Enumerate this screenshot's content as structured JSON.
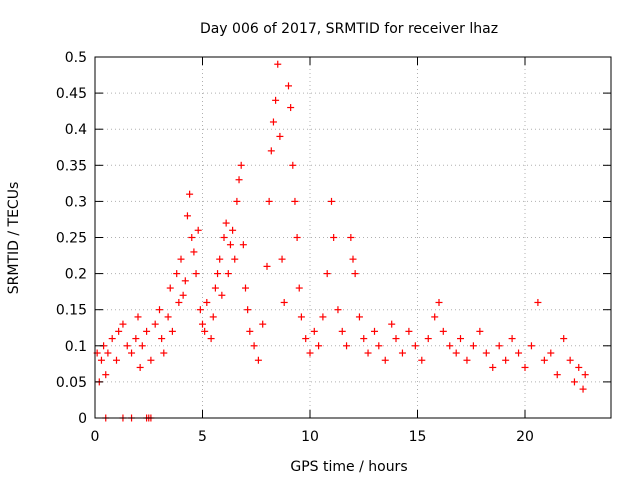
{
  "chart_data": {
    "type": "scatter",
    "title": "Day 006 of 2017, SRMTID for receiver lhaz",
    "xlabel": "GPS time / hours",
    "ylabel": "SRMTID / TECUs",
    "xlim": [
      0,
      24
    ],
    "ylim": [
      0,
      0.5
    ],
    "grid": true,
    "marker": "+",
    "color": "#ff0000",
    "xticks": [
      0,
      5,
      10,
      15,
      20
    ],
    "xtick_labels": [
      "0",
      "5",
      "10",
      "15",
      "20"
    ],
    "yticks": [
      0,
      0.05,
      0.1,
      0.15,
      0.2,
      0.25,
      0.3,
      0.35,
      0.4,
      0.45,
      0.5
    ],
    "ytick_labels": [
      "0",
      "0.05",
      "0.1",
      "0.15",
      "0.2",
      "0.25",
      "0.3",
      "0.35",
      "0.4",
      "0.45",
      "0.5"
    ],
    "series": [
      {
        "name": "lhaz",
        "points": [
          [
            0.1,
            0.09
          ],
          [
            0.2,
            0.05
          ],
          [
            0.3,
            0.08
          ],
          [
            0.4,
            0.1
          ],
          [
            0.5,
            0.06
          ],
          [
            0.6,
            0.09
          ],
          [
            0.8,
            0.11
          ],
          [
            1.0,
            0.08
          ],
          [
            1.1,
            0.12
          ],
          [
            1.3,
            0.13
          ],
          [
            1.5,
            0.1
          ],
          [
            1.7,
            0.09
          ],
          [
            1.9,
            0.11
          ],
          [
            2.0,
            0.14
          ],
          [
            2.1,
            0.07
          ],
          [
            2.2,
            0.1
          ],
          [
            2.4,
            0.12
          ],
          [
            2.6,
            0.08
          ],
          [
            2.8,
            0.13
          ],
          [
            3.0,
            0.15
          ],
          [
            3.1,
            0.11
          ],
          [
            3.2,
            0.09
          ],
          [
            3.4,
            0.14
          ],
          [
            3.5,
            0.18
          ],
          [
            3.6,
            0.12
          ],
          [
            3.8,
            0.2
          ],
          [
            3.9,
            0.16
          ],
          [
            4.0,
            0.22
          ],
          [
            4.1,
            0.17
          ],
          [
            4.2,
            0.19
          ],
          [
            4.3,
            0.28
          ],
          [
            4.4,
            0.31
          ],
          [
            4.5,
            0.25
          ],
          [
            4.6,
            0.23
          ],
          [
            4.7,
            0.2
          ],
          [
            4.8,
            0.26
          ],
          [
            4.9,
            0.15
          ],
          [
            5.0,
            0.13
          ],
          [
            5.1,
            0.12
          ],
          [
            5.2,
            0.16
          ],
          [
            5.4,
            0.11
          ],
          [
            5.5,
            0.14
          ],
          [
            5.6,
            0.18
          ],
          [
            5.7,
            0.2
          ],
          [
            5.8,
            0.22
          ],
          [
            5.9,
            0.17
          ],
          [
            6.0,
            0.25
          ],
          [
            6.1,
            0.27
          ],
          [
            6.2,
            0.2
          ],
          [
            6.3,
            0.24
          ],
          [
            6.4,
            0.26
          ],
          [
            6.5,
            0.22
          ],
          [
            6.6,
            0.3
          ],
          [
            6.7,
            0.33
          ],
          [
            6.8,
            0.35
          ],
          [
            6.9,
            0.24
          ],
          [
            7.0,
            0.18
          ],
          [
            7.1,
            0.15
          ],
          [
            7.2,
            0.12
          ],
          [
            7.4,
            0.1
          ],
          [
            7.6,
            0.08
          ],
          [
            7.8,
            0.13
          ],
          [
            8.0,
            0.21
          ],
          [
            8.1,
            0.3
          ],
          [
            8.2,
            0.37
          ],
          [
            8.3,
            0.41
          ],
          [
            8.4,
            0.44
          ],
          [
            8.5,
            0.49
          ],
          [
            8.6,
            0.39
          ],
          [
            8.7,
            0.22
          ],
          [
            8.8,
            0.16
          ],
          [
            9.0,
            0.46
          ],
          [
            9.1,
            0.43
          ],
          [
            9.2,
            0.35
          ],
          [
            9.3,
            0.3
          ],
          [
            9.4,
            0.25
          ],
          [
            9.5,
            0.18
          ],
          [
            9.6,
            0.14
          ],
          [
            9.8,
            0.11
          ],
          [
            10.0,
            0.09
          ],
          [
            10.2,
            0.12
          ],
          [
            10.4,
            0.1
          ],
          [
            10.6,
            0.14
          ],
          [
            10.8,
            0.2
          ],
          [
            11.0,
            0.3
          ],
          [
            11.1,
            0.25
          ],
          [
            11.3,
            0.15
          ],
          [
            11.5,
            0.12
          ],
          [
            11.7,
            0.1
          ],
          [
            11.9,
            0.25
          ],
          [
            12.0,
            0.22
          ],
          [
            12.1,
            0.2
          ],
          [
            12.3,
            0.14
          ],
          [
            12.5,
            0.11
          ],
          [
            12.7,
            0.09
          ],
          [
            13.0,
            0.12
          ],
          [
            13.2,
            0.1
          ],
          [
            13.5,
            0.08
          ],
          [
            13.8,
            0.13
          ],
          [
            14.0,
            0.11
          ],
          [
            14.3,
            0.09
          ],
          [
            14.6,
            0.12
          ],
          [
            14.9,
            0.1
          ],
          [
            15.2,
            0.08
          ],
          [
            15.5,
            0.11
          ],
          [
            15.8,
            0.14
          ],
          [
            16.0,
            0.16
          ],
          [
            16.2,
            0.12
          ],
          [
            16.5,
            0.1
          ],
          [
            16.8,
            0.09
          ],
          [
            17.0,
            0.11
          ],
          [
            17.3,
            0.08
          ],
          [
            17.6,
            0.1
          ],
          [
            17.9,
            0.12
          ],
          [
            18.2,
            0.09
          ],
          [
            18.5,
            0.07
          ],
          [
            18.8,
            0.1
          ],
          [
            19.1,
            0.08
          ],
          [
            19.4,
            0.11
          ],
          [
            19.7,
            0.09
          ],
          [
            20.0,
            0.07
          ],
          [
            20.3,
            0.1
          ],
          [
            20.6,
            0.16
          ],
          [
            20.9,
            0.08
          ],
          [
            21.2,
            0.09
          ],
          [
            21.5,
            0.06
          ],
          [
            21.8,
            0.11
          ],
          [
            22.1,
            0.08
          ],
          [
            22.3,
            0.05
          ],
          [
            22.5,
            0.07
          ],
          [
            22.7,
            0.04
          ],
          [
            22.8,
            0.06
          ]
        ]
      }
    ],
    "zero_points_x": [
      0.5,
      1.3,
      1.7,
      2.4,
      2.5,
      2.6
    ]
  }
}
